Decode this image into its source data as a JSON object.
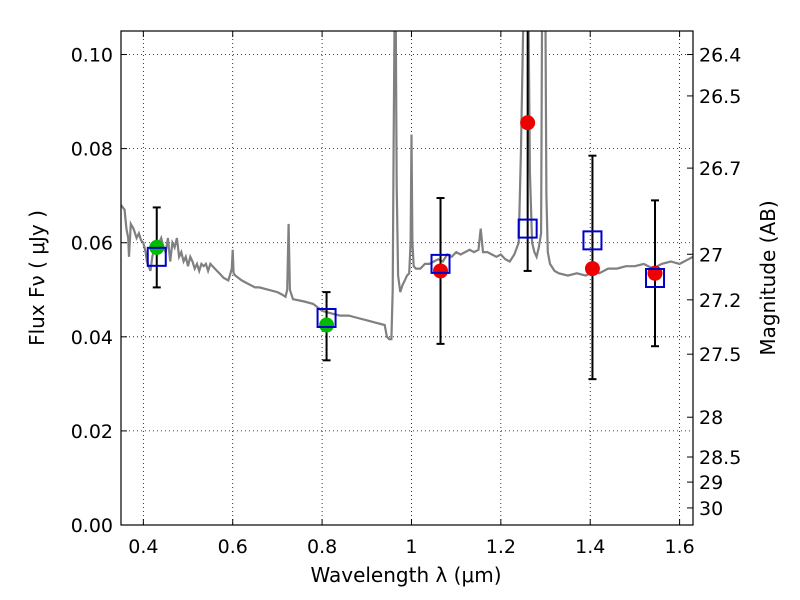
{
  "chart_data": {
    "type": "scatter",
    "title": "",
    "xlabel": "Wavelength  λ (μm)",
    "ylabel": "Flux  Fν  ( μJy )",
    "ylabel2": "Magnitude (AB)",
    "xlim": [
      0.35,
      1.63
    ],
    "ylim": [
      0.0,
      0.105
    ],
    "grid": true,
    "xticks": [
      0.4,
      0.6,
      0.8,
      1.0,
      1.2,
      1.4,
      1.6
    ],
    "xtick_labels": [
      "0.4",
      "0.6",
      "0.8",
      "1",
      "1.2",
      "1.4",
      "1.6"
    ],
    "yticks": [
      0.0,
      0.02,
      0.04,
      0.06,
      0.08,
      0.1
    ],
    "ytick_labels": [
      "0.00",
      "0.02",
      "0.04",
      "0.06",
      "0.08",
      "0.10"
    ],
    "mag_ticks": [
      26.4,
      26.5,
      26.7,
      27,
      27.2,
      27.5,
      28,
      28.5,
      29,
      30
    ],
    "mag_tick_labels": [
      "26.4",
      "26.5",
      "26.7",
      "27",
      "27.2",
      "27.5",
      "28",
      "28.5",
      "29",
      "30"
    ],
    "colors": {
      "spectrum": "#808080",
      "green": "#00bb00",
      "red": "#ee0000",
      "square": "#0000cc",
      "errorbar": "#000000"
    },
    "spectrum": [
      [
        0.35,
        0.068
      ],
      [
        0.358,
        0.067
      ],
      [
        0.362,
        0.063
      ],
      [
        0.366,
        0.061
      ],
      [
        0.368,
        0.057
      ],
      [
        0.372,
        0.064
      ],
      [
        0.378,
        0.063
      ],
      [
        0.385,
        0.061
      ],
      [
        0.39,
        0.062
      ],
      [
        0.395,
        0.0605
      ],
      [
        0.4,
        0.06
      ],
      [
        0.405,
        0.058
      ],
      [
        0.408,
        0.056
      ],
      [
        0.412,
        0.055
      ],
      [
        0.416,
        0.054
      ],
      [
        0.42,
        0.057
      ],
      [
        0.425,
        0.059
      ],
      [
        0.43,
        0.058
      ],
      [
        0.435,
        0.06
      ],
      [
        0.44,
        0.061
      ],
      [
        0.445,
        0.059
      ],
      [
        0.45,
        0.058
      ],
      [
        0.455,
        0.061
      ],
      [
        0.46,
        0.056
      ],
      [
        0.465,
        0.06
      ],
      [
        0.47,
        0.059
      ],
      [
        0.475,
        0.061
      ],
      [
        0.48,
        0.057
      ],
      [
        0.485,
        0.058
      ],
      [
        0.49,
        0.056
      ],
      [
        0.495,
        0.057
      ],
      [
        0.5,
        0.055
      ],
      [
        0.505,
        0.057
      ],
      [
        0.51,
        0.056
      ],
      [
        0.515,
        0.0545
      ],
      [
        0.52,
        0.0555
      ],
      [
        0.525,
        0.054
      ],
      [
        0.53,
        0.0555
      ],
      [
        0.535,
        0.055
      ],
      [
        0.54,
        0.0555
      ],
      [
        0.545,
        0.054
      ],
      [
        0.55,
        0.0555
      ],
      [
        0.56,
        0.0545
      ],
      [
        0.57,
        0.0535
      ],
      [
        0.58,
        0.0525
      ],
      [
        0.59,
        0.052
      ],
      [
        0.595,
        0.0535
      ],
      [
        0.598,
        0.0545
      ],
      [
        0.6,
        0.0585
      ],
      [
        0.602,
        0.0535
      ],
      [
        0.606,
        0.053
      ],
      [
        0.62,
        0.052
      ],
      [
        0.64,
        0.051
      ],
      [
        0.65,
        0.0505
      ],
      [
        0.66,
        0.0505
      ],
      [
        0.68,
        0.05
      ],
      [
        0.7,
        0.0495
      ],
      [
        0.71,
        0.049
      ],
      [
        0.718,
        0.0485
      ],
      [
        0.722,
        0.05
      ],
      [
        0.725,
        0.064
      ],
      [
        0.728,
        0.05
      ],
      [
        0.735,
        0.048
      ],
      [
        0.76,
        0.0475
      ],
      [
        0.78,
        0.047
      ],
      [
        0.8,
        0.0455
      ],
      [
        0.82,
        0.045
      ],
      [
        0.84,
        0.0445
      ],
      [
        0.86,
        0.0445
      ],
      [
        0.88,
        0.044
      ],
      [
        0.9,
        0.0435
      ],
      [
        0.92,
        0.043
      ],
      [
        0.94,
        0.0425
      ],
      [
        0.945,
        0.04
      ],
      [
        0.95,
        0.0395
      ],
      [
        0.955,
        0.0395
      ],
      [
        0.958,
        0.05
      ],
      [
        0.96,
        0.08
      ],
      [
        0.962,
        0.106
      ],
      [
        0.965,
        0.106
      ],
      [
        0.967,
        0.072
      ],
      [
        0.97,
        0.053
      ],
      [
        0.975,
        0.0495
      ],
      [
        0.98,
        0.051
      ],
      [
        0.985,
        0.052
      ],
      [
        0.99,
        0.053
      ],
      [
        0.995,
        0.0535
      ],
      [
        0.998,
        0.06
      ],
      [
        1.0,
        0.083
      ],
      [
        1.002,
        0.06
      ],
      [
        1.005,
        0.055
      ],
      [
        1.01,
        0.0545
      ],
      [
        1.02,
        0.0545
      ],
      [
        1.03,
        0.0555
      ],
      [
        1.04,
        0.0555
      ],
      [
        1.05,
        0.056
      ],
      [
        1.06,
        0.0565
      ],
      [
        1.07,
        0.056
      ],
      [
        1.08,
        0.0575
      ],
      [
        1.09,
        0.057
      ],
      [
        1.1,
        0.058
      ],
      [
        1.11,
        0.0575
      ],
      [
        1.12,
        0.058
      ],
      [
        1.13,
        0.0585
      ],
      [
        1.14,
        0.058
      ],
      [
        1.15,
        0.0585
      ],
      [
        1.155,
        0.063
      ],
      [
        1.16,
        0.058
      ],
      [
        1.17,
        0.058
      ],
      [
        1.18,
        0.0575
      ],
      [
        1.19,
        0.057
      ],
      [
        1.2,
        0.0575
      ],
      [
        1.21,
        0.0565
      ],
      [
        1.22,
        0.056
      ],
      [
        1.23,
        0.0575
      ],
      [
        1.24,
        0.06
      ],
      [
        1.245,
        0.08
      ],
      [
        1.25,
        0.106
      ],
      [
        1.262,
        0.106
      ],
      [
        1.265,
        0.075
      ],
      [
        1.27,
        0.06
      ],
      [
        1.275,
        0.058
      ],
      [
        1.28,
        0.057
      ],
      [
        1.285,
        0.059
      ],
      [
        1.29,
        0.062
      ],
      [
        1.292,
        0.106
      ],
      [
        1.3,
        0.106
      ],
      [
        1.302,
        0.07
      ],
      [
        1.305,
        0.058
      ],
      [
        1.31,
        0.0555
      ],
      [
        1.32,
        0.054
      ],
      [
        1.33,
        0.0535
      ],
      [
        1.35,
        0.053
      ],
      [
        1.37,
        0.0535
      ],
      [
        1.39,
        0.053
      ],
      [
        1.41,
        0.054
      ],
      [
        1.42,
        0.0535
      ],
      [
        1.44,
        0.0545
      ],
      [
        1.46,
        0.0545
      ],
      [
        1.48,
        0.055
      ],
      [
        1.5,
        0.055
      ],
      [
        1.52,
        0.0555
      ],
      [
        1.54,
        0.0545
      ],
      [
        1.56,
        0.0555
      ],
      [
        1.58,
        0.056
      ],
      [
        1.6,
        0.0555
      ],
      [
        1.62,
        0.0565
      ],
      [
        1.63,
        0.057
      ]
    ],
    "series": [
      {
        "name": "green points",
        "marker": "circle",
        "x": [
          0.43,
          0.81
        ],
        "y": [
          0.059,
          0.0425
        ]
      },
      {
        "name": "red points",
        "marker": "circle",
        "x": [
          1.065,
          1.26,
          1.405,
          1.545
        ],
        "y": [
          0.054,
          0.0855,
          0.0545,
          0.0535
        ]
      },
      {
        "name": "model squares",
        "marker": "square",
        "x": [
          0.43,
          0.81,
          1.065,
          1.26,
          1.405,
          1.545
        ],
        "y": [
          0.057,
          0.044,
          0.0555,
          0.063,
          0.0605,
          0.0525
        ]
      },
      {
        "name": "error bars",
        "marker": "errorbar",
        "x": [
          0.43,
          0.81,
          1.065,
          1.26,
          1.405,
          1.545
        ],
        "ylow": [
          0.0505,
          0.035,
          0.0385,
          0.054,
          0.031,
          0.038
        ],
        "yhigh": [
          0.0675,
          0.0495,
          0.0695,
          0.106,
          0.0785,
          0.069
        ]
      }
    ]
  }
}
